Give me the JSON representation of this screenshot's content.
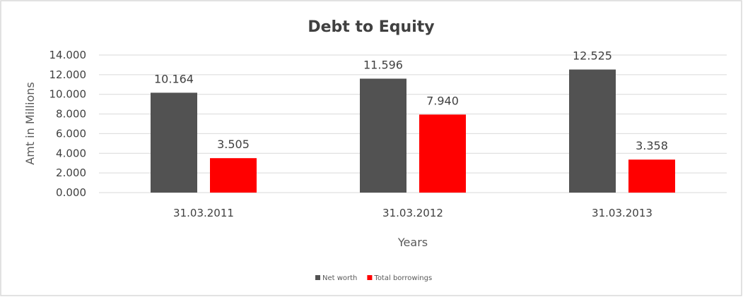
{
  "chart_data": {
    "type": "bar",
    "title": "Debt to Equity",
    "xlabel": "Years",
    "ylabel": "Amt in Millions",
    "categories": [
      "31.03.2011",
      "31.03.2012",
      "31.03.2013"
    ],
    "series": [
      {
        "name": "Net worth",
        "values": [
          10.164,
          11.596,
          12.525
        ],
        "color": "#525252"
      },
      {
        "name": "Total borrowings",
        "values": [
          3.505,
          7.94,
          3.358
        ],
        "color": "#ff0000"
      }
    ],
    "data_labels": [
      [
        "10.164",
        "11.596",
        "12.525"
      ],
      [
        "3.505",
        "7.940",
        "3.358"
      ]
    ],
    "ylim": [
      0,
      14
    ],
    "yticks": [
      "0.000",
      "2.000",
      "4.000",
      "6.000",
      "8.000",
      "10.000",
      "12.000",
      "14.000"
    ],
    "grid": true,
    "legend": "bottom"
  }
}
